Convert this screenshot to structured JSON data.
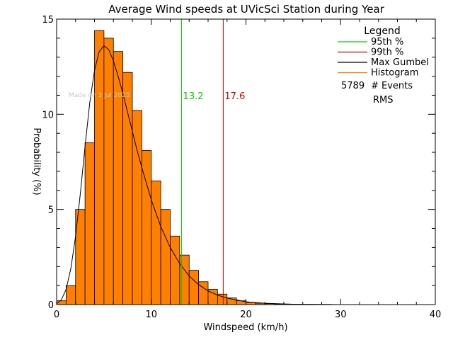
{
  "chart_data": {
    "type": "bar",
    "title": "Average Wind speeds at UVicSci Station during Year",
    "xlabel": "Windspeed (km/h)",
    "ylabel": "Probability (%)",
    "xlim": [
      0,
      40
    ],
    "ylim": [
      0,
      15
    ],
    "x_ticks": [
      "0",
      "10",
      "20",
      "30",
      "40"
    ],
    "y_ticks": [
      "0",
      "5",
      "10",
      "15"
    ],
    "bin_width": 1,
    "histogram": [
      0.2,
      1.0,
      5.0,
      8.5,
      14.4,
      14.0,
      13.3,
      12.2,
      10.2,
      8.1,
      6.5,
      5.0,
      3.6,
      2.6,
      1.8,
      1.2,
      0.8,
      0.55,
      0.35,
      0.2,
      0.12,
      0.07,
      0.05,
      0.03,
      0.02,
      0.02,
      0.01,
      0.01,
      0.01,
      0.0,
      0.0,
      0.0,
      0.0,
      0.0,
      0.0,
      0.0,
      0.0,
      0.0,
      0.0,
      0.0
    ],
    "gumbel_curve": {
      "x": [
        0,
        0.5,
        1,
        1.5,
        2,
        2.5,
        3,
        3.5,
        4,
        4.5,
        5,
        5.5,
        6,
        6.5,
        7,
        7.5,
        8,
        8.5,
        9,
        10,
        11,
        12,
        13,
        14,
        15,
        16,
        17,
        18,
        20,
        22,
        25,
        30
      ],
      "y": [
        0.05,
        0.25,
        0.8,
        1.9,
        3.6,
        5.8,
        8.3,
        10.6,
        12.3,
        13.3,
        13.6,
        13.4,
        12.8,
        12.0,
        11.1,
        10.1,
        9.1,
        8.1,
        7.2,
        5.5,
        4.1,
        3.0,
        2.15,
        1.5,
        1.05,
        0.72,
        0.5,
        0.34,
        0.15,
        0.07,
        0.02,
        0.0
      ]
    },
    "percentile_lines": [
      {
        "label": "13.2",
        "value": 13.2,
        "color": "#00cc00"
      },
      {
        "label": "17.6",
        "value": 17.6,
        "color": "#cc0000"
      }
    ],
    "legend": {
      "title": "Legend",
      "placement": "top-right",
      "entries": [
        {
          "label": "95th %",
          "color": "#00cc00"
        },
        {
          "label": "99th %",
          "color": "#cc0000"
        },
        {
          "label": "Max Gumbel",
          "color": "#000000"
        },
        {
          "label": "Histogram",
          "color": "#ff8000"
        }
      ],
      "events_count": "5789",
      "events_label": "# Events",
      "rms_label": "RMS"
    },
    "watermark": "Made on 3 Jul 2025",
    "colors": {
      "histogram_fill": "#ff8000",
      "curve": "#000000"
    }
  }
}
